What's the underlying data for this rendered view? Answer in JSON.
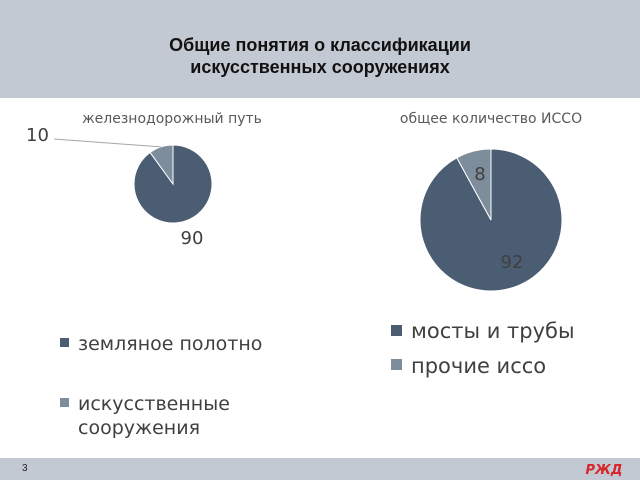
{
  "slide": {
    "title_line1": "Общие понятия о классификации",
    "title_line2": "искусственных сооружениях",
    "page_number": "3",
    "logo_text": "РЖД"
  },
  "colors": {
    "primary": "#4a5d72",
    "secondary": "#7d8d9c",
    "band": "#c3c9d3"
  },
  "chart_data": [
    {
      "type": "pie",
      "title": "железнодорожный путь",
      "labels": [
        "земляное полотно",
        "искусственные сооружения"
      ],
      "values": [
        90,
        10
      ],
      "value_labels": [
        "90",
        "10"
      ],
      "legend": [
        "земляное полотно",
        "искусственные",
        "сооружения"
      ],
      "legend_position": "bottom"
    },
    {
      "type": "pie",
      "title": "общее количество ИССО",
      "labels": [
        "мосты и трубы",
        "прочие иссо"
      ],
      "values": [
        92,
        8
      ],
      "value_labels": [
        "92",
        "8"
      ],
      "legend": [
        "мосты и трубы",
        "прочие иссо"
      ],
      "legend_position": "bottom"
    }
  ]
}
